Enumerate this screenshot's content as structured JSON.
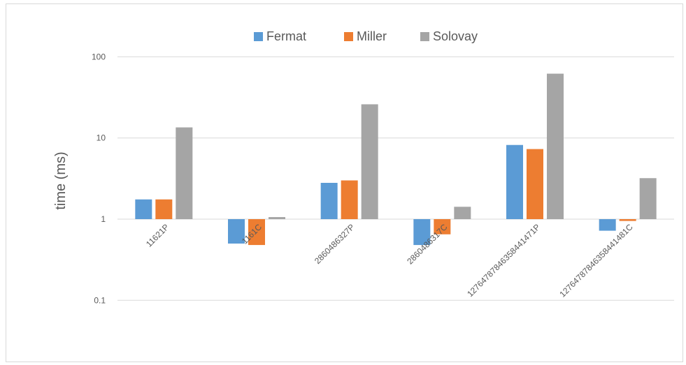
{
  "chart_data": {
    "type": "bar",
    "title": "",
    "xlabel": "",
    "ylabel": "time (ms)",
    "yscale": "log",
    "ylim": [
      0.1,
      100
    ],
    "yticks": [
      {
        "value": 0.1,
        "label": "0.1"
      },
      {
        "value": 1,
        "label": "1"
      },
      {
        "value": 10,
        "label": "10"
      },
      {
        "value": 100,
        "label": "100"
      }
    ],
    "grid": "horizontal",
    "legend_position": "top",
    "categories": [
      "11621P",
      "1161C",
      "2860486327P",
      "2860486317C",
      "127647878463584414 71P",
      "127647878463584414 81C"
    ],
    "category_labels": [
      "11621P",
      "1161C",
      "2860486327P",
      "2860486317C",
      "12764787846358441471P",
      "12764787846358441481C"
    ],
    "series": [
      {
        "name": "Fermat",
        "color": "#5b9bd5",
        "values": [
          1.75,
          0.5,
          2.8,
          0.48,
          8.2,
          0.72
        ]
      },
      {
        "name": "Miller",
        "color": "#ed7d31",
        "values": [
          1.75,
          0.48,
          3.0,
          0.65,
          7.3,
          0.95
        ]
      },
      {
        "name": "Solovay",
        "color": "#a5a5a5",
        "values": [
          13.5,
          1.06,
          26.0,
          1.42,
          62.0,
          3.2
        ]
      }
    ]
  }
}
